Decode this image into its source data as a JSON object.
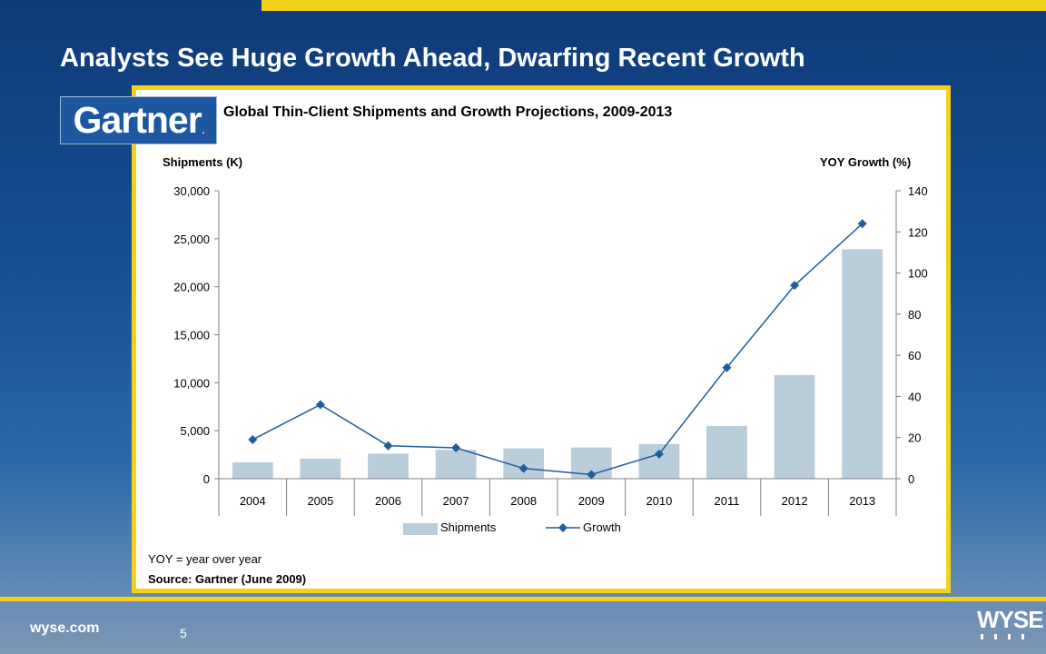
{
  "slide": {
    "title": "Analysts See Huge Growth Ahead, Dwarfing Recent Growth",
    "logo": "Gartner",
    "logo_mark": ".",
    "footer_site": "wyse.com",
    "page_number": "5",
    "brand": "WYSE",
    "note": "YOY = year over year",
    "source": "Source: Gartner (June 2009)"
  },
  "chart_data": {
    "type": "bar",
    "title": "Global Thin-Client Shipments and Growth Projections, 2009-2013",
    "ylabel": "Shipments (K)",
    "y2label": "YOY Growth (%)",
    "categories": [
      "2004",
      "2005",
      "2006",
      "2007",
      "2008",
      "2009",
      "2010",
      "2011",
      "2012",
      "2013"
    ],
    "series": [
      {
        "name": "Shipments",
        "type": "bar",
        "axis": "left",
        "color": "#b9cddb",
        "values": [
          1700,
          2100,
          2600,
          3000,
          3150,
          3250,
          3600,
          5500,
          10800,
          23900
        ]
      },
      {
        "name": "Growth",
        "type": "line",
        "axis": "right",
        "color": "#1f5c9c",
        "marker": "diamond",
        "values": [
          19,
          36,
          16,
          15,
          5,
          2,
          12,
          54,
          94,
          124
        ]
      }
    ],
    "ylim": [
      0,
      30000
    ],
    "yticks": [
      0,
      5000,
      10000,
      15000,
      20000,
      25000,
      30000
    ],
    "ytick_labels": [
      "0",
      "5,000",
      "10,000",
      "15,000",
      "20,000",
      "25,000",
      "30,000"
    ],
    "y2lim": [
      0,
      140
    ],
    "y2ticks": [
      0,
      20,
      40,
      60,
      80,
      100,
      120,
      140
    ],
    "y2tick_labels": [
      "0",
      "20",
      "40",
      "60",
      "80",
      "100",
      "120",
      "140"
    ],
    "legend": "bottom",
    "grid": false
  }
}
